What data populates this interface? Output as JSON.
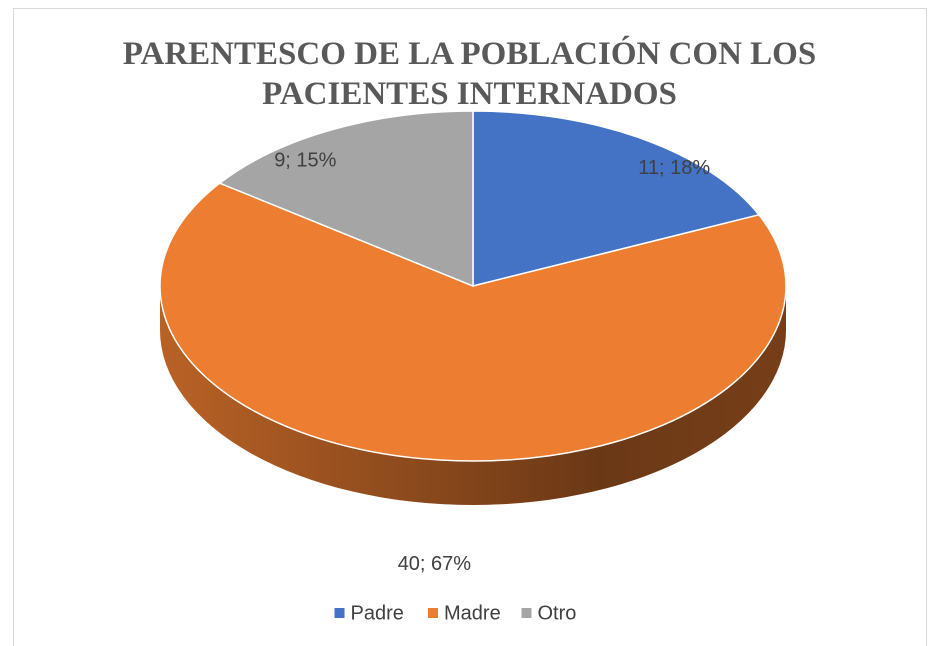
{
  "chart_data": {
    "type": "pie3d",
    "title": "PARENTESCO DE LA POBLACIÓN CON LOS PACIENTES INTERNADOS",
    "categories": [
      "Padre",
      "Madre",
      "Otro"
    ],
    "values": [
      11,
      40,
      9
    ],
    "value_labels": [
      "11; 18%",
      "40; 67%",
      "9; 15%"
    ],
    "colors": [
      "#4472c4",
      "#ed7d31",
      "#a5a5a5"
    ],
    "legend": "bottom"
  }
}
